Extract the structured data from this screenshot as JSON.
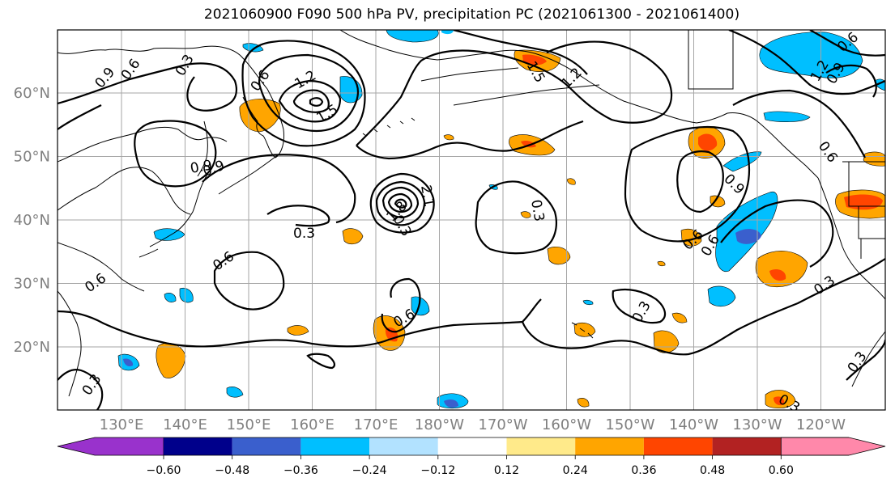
{
  "title": "2021060900 F090 500 hPa PV, precipitation PC (2021061300 - 2021061400)",
  "lat_labels": [
    "60°N",
    "50°N",
    "40°N",
    "30°N",
    "20°N"
  ],
  "lon_labels": [
    "130°E",
    "140°E",
    "150°E",
    "160°E",
    "170°E",
    "180°W",
    "170°W",
    "160°W",
    "150°W",
    "140°W",
    "130°W",
    "120°W"
  ],
  "colorbar": {
    "labels": [
      "−0.60",
      "−0.48",
      "−0.36",
      "−0.24",
      "−0.12",
      "0.12",
      "0.24",
      "0.36",
      "0.48",
      "0.60"
    ],
    "colors": [
      "#9932cc",
      "#00008b",
      "#3a5fcd",
      "#00bfff",
      "#b2e2ff",
      "#ffffff",
      "#ffea8a",
      "#ffa500",
      "#ff4500",
      "#b22222",
      "#ff88aa"
    ]
  },
  "contour_labels": [
    "0.3",
    "0.6",
    "0.9",
    "1.2",
    "1.5",
    "0.3",
    "0.6",
    "0.9",
    "1.2",
    "1.5",
    "1.8",
    "2.1",
    "0.3",
    "0.6",
    "0.6",
    "0.6",
    "0.3",
    "0.6",
    "0.9",
    "0.3",
    "0.3",
    "0.6",
    "0.3",
    "0.6",
    "0.9",
    "1.2",
    "0.3",
    "0.3",
    "0.6",
    "0.9"
  ],
  "colors": {
    "precip_pos_light": "#ffea8a",
    "precip_pos_mid": "#ffa500",
    "precip_pos_high": "#ff4500",
    "precip_neg_light": "#b2e2ff",
    "precip_neg_mid": "#00bfff",
    "precip_neg_high": "#3a5fcd"
  }
}
